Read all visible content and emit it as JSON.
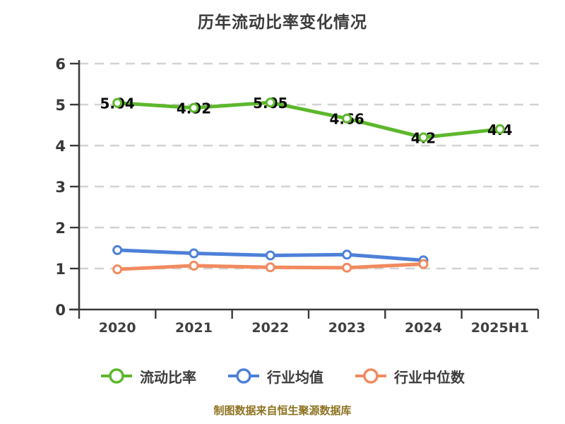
{
  "chart_data": {
    "type": "line",
    "title": "历年流动比率变化情况",
    "categories": [
      "2020",
      "2021",
      "2022",
      "2023",
      "2024",
      "2025H1"
    ],
    "yticks": [
      "0",
      "1",
      "2",
      "3",
      "4",
      "5",
      "6"
    ],
    "ylim": [
      0,
      6
    ],
    "grid": {
      "horizontal": true,
      "style": "dashed",
      "color": "#d2d2d2"
    },
    "axis_color": "#3a3a3a",
    "legend_position": "bottom",
    "series": [
      {
        "name": "流动比率",
        "color": "#5db72c",
        "values": [
          5.04,
          4.92,
          5.05,
          4.66,
          4.2,
          4.4
        ],
        "point_labels": [
          "5.04",
          "4.92",
          "5.05",
          "4.66",
          "4.2",
          "4.4"
        ]
      },
      {
        "name": "行业均值",
        "color": "#4d80d8",
        "values": [
          1.45,
          1.37,
          1.32,
          1.34,
          1.2,
          null
        ]
      },
      {
        "name": "行业中位数",
        "color": "#f28a5f",
        "values": [
          0.98,
          1.07,
          1.03,
          1.02,
          1.11,
          null
        ]
      }
    ]
  },
  "footer": {
    "text": "制图数据来自恒生聚源数据库",
    "color": "#8e7220"
  }
}
